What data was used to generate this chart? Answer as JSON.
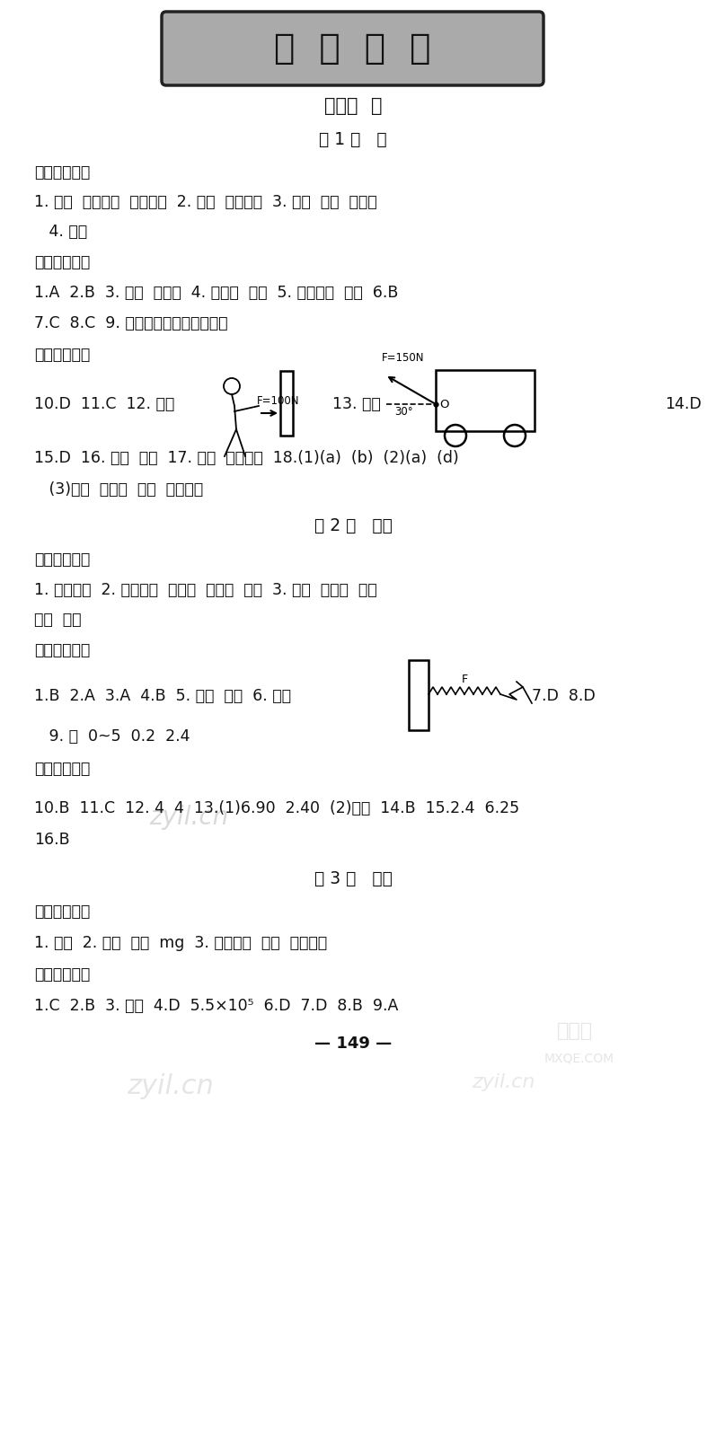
{
  "title_banner": "参  考  答  案",
  "chapter_title": "第七章  力",
  "section1_title": "第 1 节   力",
  "section1_pre": "课前预习感知",
  "section1_pre_c1": "1. 作用  施力物体  受力物体  2. 形状  运动状态  3. 大小  方向  作用点",
  "section1_pre_c2": "   4. 相互",
  "section1_inner": "课内夹实基础",
  "section1_inner_c1": "1.A  2.B  3. 球拍  乒乓球  4. 运动员  形状  5. 运动状态  形状  6.B",
  "section1_inner_c2": "7.C  8.C  9. 物体间力的作用是相互的",
  "section1_outer": "课外巩固提升",
  "section1_outer_c1": "10.D  11.C  12. 解：",
  "section1_outer_c2": "13. 解：",
  "section1_outer_c3": "14.D",
  "section1_outer_c4": "15.D  16. 相互  运动  17. 相互  运动状态  18.(1)(a)  (b)  (2)(a)  (d)",
  "section1_outer_c5": "   (3)大小  作用点  方向  控制变量",
  "section2_title": "第 2 节   弹力",
  "section2_pre": "课前预习感知",
  "section2_pre_c1": "1. 弹性形变  2. 力的大小  伸长量  伸长量  正比  3. 量程  分度值  零刻",
  "section2_pre_c2": "度线  一致",
  "section2_inner": "课内夹实基础",
  "section2_inner_c1": "1.B  2.A  3.A  4.B  5. 形变  转换  6. 解：",
  "section2_inner_c2": "7.D  8.D",
  "section2_inner_c3": "   9. 是  0~5  0.2  2.4",
  "section2_outer": "课外巩固提升",
  "section2_outer_c1": "10.B  11.C  12. 4  4  13.(1)6.90  2.40  (2)小明  14.B  15.2.4  6.25",
  "section2_outer_c2": "16.B",
  "section3_title": "第 3 节   重力",
  "section3_pre": "课前预习感知",
  "section3_pre_c1": "1. 重力  2. 地球  正比  mg  3. 竖直向下  重心  几何中心",
  "section3_inner": "课内夹实基础",
  "section3_inner_c1": "1.C  2.B  3. 重力  4.D  5.5×10⁵  6.D  7.D  8.B  9.A",
  "page_number": "— 149 —",
  "wm1": "zyil.cn",
  "wm2": "zyil.cn",
  "bg_color": "#ffffff",
  "text_color": "#111111",
  "banner_bg": "#999999"
}
